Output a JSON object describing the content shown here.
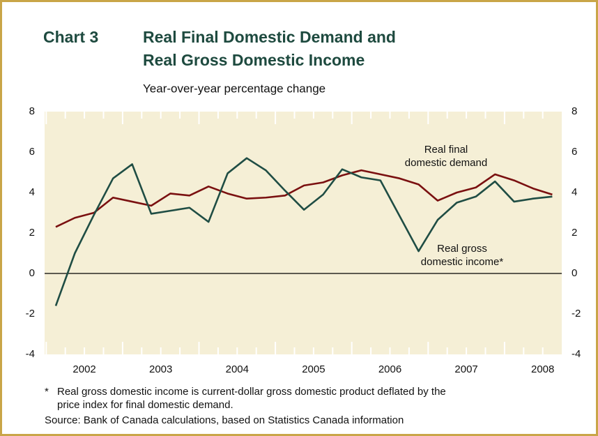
{
  "chart_data": {
    "type": "line",
    "chart_label": "Chart 3",
    "title_lines": [
      "Real Final Domestic Demand and",
      "Real Gross Domestic Income"
    ],
    "subtitle": "Year-over-year percentage change",
    "categories": [
      "2002",
      null,
      null,
      null,
      "2003",
      null,
      null,
      null,
      "2004",
      null,
      null,
      null,
      "2005",
      null,
      null,
      null,
      "2006",
      null,
      null,
      null,
      "2007",
      null,
      null,
      null,
      "2008",
      null,
      null
    ],
    "series": [
      {
        "label_lines": [
          "Real final",
          "domestic demand"
        ],
        "color": "#7a1010",
        "values": [
          2.3,
          2.75,
          3.0,
          3.75,
          3.55,
          3.35,
          3.95,
          3.85,
          4.3,
          3.95,
          3.7,
          3.75,
          3.85,
          4.35,
          4.5,
          4.85,
          5.1,
          4.9,
          4.7,
          4.4,
          3.6,
          4.0,
          4.25,
          4.9,
          4.6,
          4.2,
          3.9
        ]
      },
      {
        "label_lines": [
          "Real gross",
          "domestic income*"
        ],
        "color": "#1f4d44",
        "values": [
          -1.6,
          1.0,
          2.9,
          4.7,
          5.4,
          2.95,
          3.1,
          3.25,
          2.55,
          4.95,
          5.7,
          5.1,
          4.1,
          3.15,
          3.9,
          5.15,
          4.75,
          4.6,
          2.85,
          1.1,
          2.65,
          3.5,
          3.8,
          4.55,
          3.55,
          3.7,
          3.8
        ]
      }
    ],
    "ylim": [
      -4,
      8
    ],
    "yticks": [
      -4,
      -2,
      0,
      2,
      4,
      6,
      8
    ],
    "notes": [
      "*",
      "Real gross domestic income is current-dollar gross domestic product deflated by the",
      "price index for final domestic demand.",
      "Source: Bank of Canada calculations, based on Statistics Canada information"
    ]
  }
}
